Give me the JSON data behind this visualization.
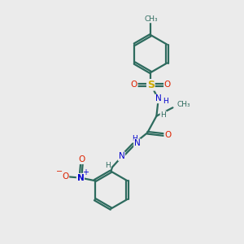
{
  "bg_color": "#ebebeb",
  "bond_color": "#2d6b5e",
  "bond_width": 1.6,
  "atom_colors": {
    "S": "#ccaa00",
    "O": "#dd2200",
    "N": "#0000cc",
    "C": "#2d6b5e",
    "H": "#2d6b5e"
  },
  "figsize": [
    3.0,
    3.0
  ],
  "dpi": 100,
  "xlim": [
    0,
    10
  ],
  "ylim": [
    0,
    10
  ]
}
